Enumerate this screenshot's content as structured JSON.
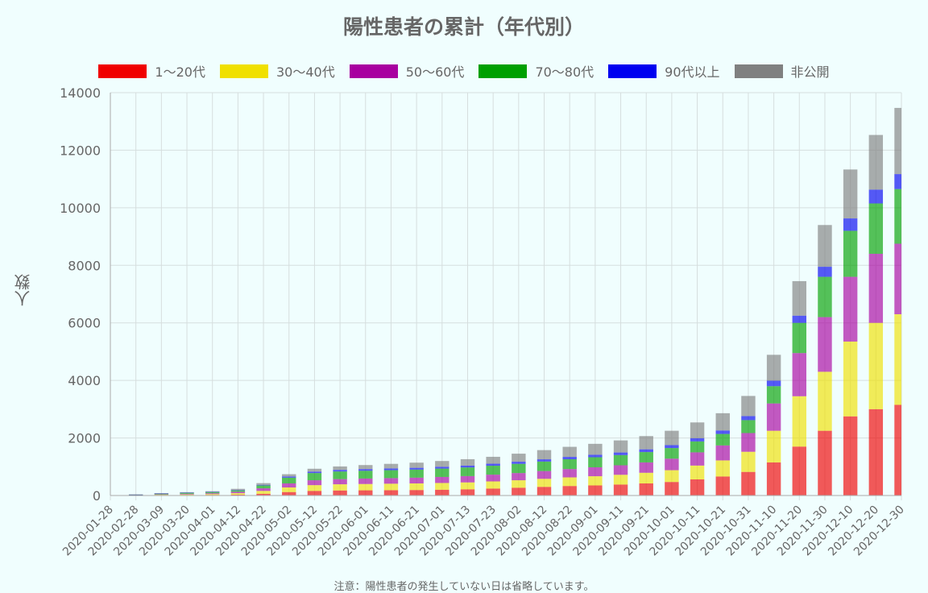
{
  "chart_data": {
    "type": "bar",
    "stacked": true,
    "title": "陽性患者の累計（年代別）",
    "ylabel": "人数",
    "xlabel": "",
    "ylim": [
      0,
      14000
    ],
    "yticks": [
      0,
      2000,
      4000,
      6000,
      8000,
      10000,
      12000,
      14000
    ],
    "grid": true,
    "legend_position": "top",
    "footnote": "注意：陽性患者の発生していない日は省略しています。",
    "x_tick_labels": [
      "2020-01-28",
      "2020-02-28",
      "2020-03-09",
      "2020-03-20",
      "2020-04-01",
      "2020-04-12",
      "2020-04-22",
      "2020-05-02",
      "2020-05-12",
      "2020-05-22",
      "2020-06-01",
      "2020-06-11",
      "2020-06-21",
      "2020-07-01",
      "2020-07-13",
      "2020-07-23",
      "2020-08-02",
      "2020-08-12",
      "2020-08-22",
      "2020-09-01",
      "2020-09-11",
      "2020-09-21",
      "2020-10-01",
      "2020-10-11",
      "2020-10-21",
      "2020-10-31",
      "2020-11-10",
      "2020-11-20",
      "2020-11-30",
      "2020-12-10",
      "2020-12-20",
      "2020-12-30"
    ],
    "x": [
      "2020-01-28",
      "2020-02-28",
      "2020-03-09",
      "2020-03-20",
      "2020-04-01",
      "2020-04-12",
      "2020-04-22",
      "2020-05-02",
      "2020-05-12",
      "2020-05-22",
      "2020-06-01",
      "2020-06-11",
      "2020-06-21",
      "2020-07-01",
      "2020-07-13",
      "2020-07-23",
      "2020-08-02",
      "2020-08-12",
      "2020-08-22",
      "2020-09-01",
      "2020-09-11",
      "2020-09-21",
      "2020-10-01",
      "2020-10-11",
      "2020-10-21",
      "2020-10-31",
      "2020-11-10",
      "2020-11-20",
      "2020-11-30",
      "2020-12-10",
      "2020-12-20",
      "2020-12-30"
    ],
    "series": [
      {
        "name": "1～20代",
        "color": "#f00000",
        "values": [
          2,
          5,
          10,
          15,
          20,
          30,
          60,
          120,
          160,
          175,
          180,
          185,
          190,
          200,
          215,
          240,
          270,
          300,
          330,
          350,
          380,
          420,
          470,
          560,
          660,
          820,
          1150,
          1700,
          2250,
          2750,
          3000,
          3150
        ]
      },
      {
        "name": "30～40代",
        "color": "#f0e000",
        "values": [
          1,
          8,
          15,
          22,
          30,
          50,
          100,
          160,
          200,
          215,
          220,
          225,
          230,
          235,
          240,
          250,
          260,
          280,
          300,
          320,
          340,
          370,
          410,
          480,
          560,
          700,
          1100,
          1750,
          2050,
          2600,
          3000,
          3150
        ]
      },
      {
        "name": "50～60代",
        "color": "#a800a0",
        "values": [
          1,
          8,
          15,
          22,
          30,
          50,
          90,
          140,
          170,
          180,
          190,
          195,
          200,
          210,
          220,
          235,
          250,
          270,
          290,
          310,
          330,
          360,
          400,
          460,
          520,
          650,
          950,
          1500,
          1900,
          2250,
          2400,
          2450
        ]
      },
      {
        "name": "70～80代",
        "color": "#00a000",
        "values": [
          0,
          10,
          25,
          35,
          40,
          50,
          100,
          200,
          250,
          265,
          270,
          275,
          280,
          290,
          300,
          310,
          320,
          330,
          340,
          350,
          355,
          360,
          370,
          380,
          400,
          450,
          600,
          1050,
          1400,
          1600,
          1750,
          1900
        ]
      },
      {
        "name": "90代以上",
        "color": "#0000f0",
        "values": [
          0,
          2,
          5,
          8,
          10,
          12,
          20,
          40,
          50,
          55,
          58,
          60,
          62,
          64,
          66,
          70,
          74,
          78,
          82,
          86,
          90,
          95,
          100,
          110,
          120,
          140,
          190,
          250,
          350,
          430,
          480,
          520
        ]
      },
      {
        "name": "非公開",
        "color": "#808080",
        "values": [
          0,
          5,
          10,
          15,
          20,
          40,
          60,
          80,
          100,
          120,
          140,
          160,
          180,
          200,
          220,
          240,
          280,
          320,
          350,
          380,
          420,
          460,
          500,
          550,
          600,
          700,
          900,
          1200,
          1450,
          1700,
          1900,
          2300
        ]
      }
    ]
  }
}
